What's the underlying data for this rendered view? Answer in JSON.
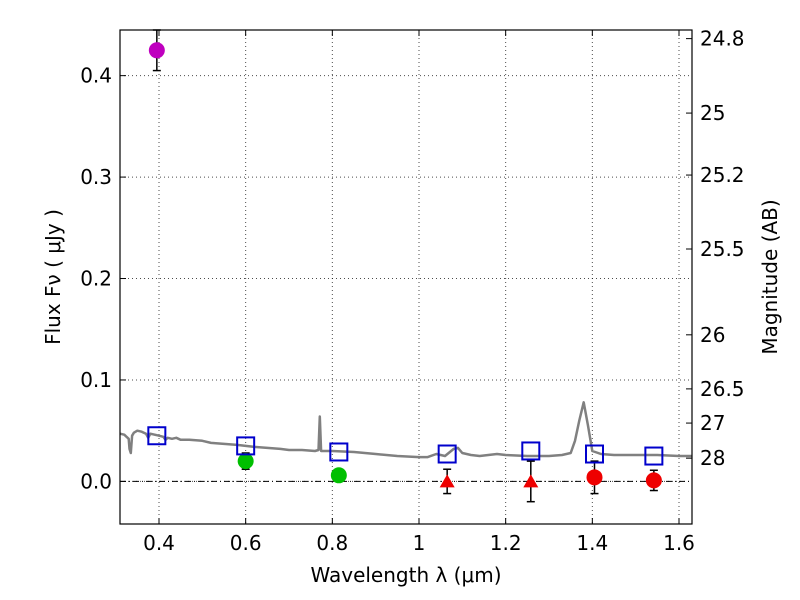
{
  "chart_data": {
    "type": "scatter",
    "xlabel": "Wavelength  λ (μm)",
    "ylabel": "Flux  Fν  ( μJy )",
    "ylabel_right": "Magnitude (AB)",
    "xlim": [
      0.31,
      1.63
    ],
    "ylim": [
      -0.042,
      0.445
    ],
    "grid": true,
    "x_ticks": [
      0.4,
      0.6,
      0.8,
      1.0,
      1.2,
      1.4,
      1.6
    ],
    "x_tick_labels": [
      "0.4",
      "0.6",
      "0.8",
      "1",
      "1.2",
      "1.4",
      "1.6"
    ],
    "y_ticks": [
      0.0,
      0.1,
      0.2,
      0.3,
      0.4
    ],
    "y_tick_labels": [
      "0.0",
      "0.1",
      "0.2",
      "0.3",
      "0.4"
    ],
    "right_ticks": [
      {
        "label": "24.8",
        "flux": 0.4365
      },
      {
        "label": "25",
        "flux": 0.3631
      },
      {
        "label": "25.2",
        "flux": 0.302
      },
      {
        "label": "25.5",
        "flux": 0.2291
      },
      {
        "label": "26",
        "flux": 0.1445
      },
      {
        "label": "26.5",
        "flux": 0.0912
      },
      {
        "label": "27",
        "flux": 0.0575
      },
      {
        "label": "28",
        "flux": 0.0229
      }
    ],
    "colors": {
      "model_line": "#808080",
      "model_box": "#0000cc",
      "purple": "#bf00bf",
      "green": "#00bf00",
      "red": "#ee0000",
      "errorbar": "#000000",
      "zero_line": "#000000",
      "grid": "#000000"
    },
    "sed_model": {
      "name": "SED model",
      "x": [
        0.31,
        0.32,
        0.33,
        0.332,
        0.335,
        0.338,
        0.342,
        0.35,
        0.36,
        0.37,
        0.375,
        0.38,
        0.39,
        0.4,
        0.41,
        0.415,
        0.42,
        0.43,
        0.44,
        0.45,
        0.47,
        0.5,
        0.52,
        0.55,
        0.58,
        0.6,
        0.62,
        0.65,
        0.68,
        0.7,
        0.73,
        0.76,
        0.768,
        0.771,
        0.774,
        0.78,
        0.8,
        0.85,
        0.9,
        0.95,
        1.0,
        1.02,
        1.04,
        1.06,
        1.08,
        1.09,
        1.1,
        1.12,
        1.14,
        1.16,
        1.18,
        1.2,
        1.25,
        1.3,
        1.33,
        1.35,
        1.36,
        1.37,
        1.38,
        1.39,
        1.4,
        1.42,
        1.45,
        1.5,
        1.55,
        1.6,
        1.63
      ],
      "y": [
        0.047,
        0.046,
        0.042,
        0.032,
        0.028,
        0.045,
        0.048,
        0.05,
        0.049,
        0.047,
        0.043,
        0.047,
        0.046,
        0.045,
        0.044,
        0.041,
        0.043,
        0.042,
        0.043,
        0.041,
        0.041,
        0.04,
        0.038,
        0.037,
        0.036,
        0.035,
        0.034,
        0.033,
        0.032,
        0.031,
        0.031,
        0.03,
        0.031,
        0.064,
        0.03,
        0.03,
        0.03,
        0.029,
        0.027,
        0.025,
        0.024,
        0.024,
        0.027,
        0.025,
        0.032,
        0.033,
        0.028,
        0.026,
        0.025,
        0.026,
        0.027,
        0.026,
        0.025,
        0.025,
        0.026,
        0.028,
        0.04,
        0.06,
        0.078,
        0.055,
        0.03,
        0.027,
        0.026,
        0.026,
        0.026,
        0.025,
        0.025
      ]
    },
    "model_photometry": {
      "name": "Model band fluxes",
      "x": [
        0.395,
        0.6,
        0.815,
        1.065,
        1.258,
        1.405,
        1.542
      ],
      "y": [
        0.045,
        0.035,
        0.029,
        0.027,
        0.03,
        0.027,
        0.025
      ]
    },
    "observations": [
      {
        "x": 0.395,
        "y": 0.425,
        "err": 0.02,
        "color": "purple",
        "marker": "circle"
      },
      {
        "x": 0.6,
        "y": 0.02,
        "err": 0.008,
        "color": "green",
        "marker": "circle"
      },
      {
        "x": 0.815,
        "y": 0.006,
        "err": 0.006,
        "color": "green",
        "marker": "circle"
      },
      {
        "x": 1.065,
        "y": 0.0,
        "err": 0.012,
        "color": "red",
        "marker": "triangle"
      },
      {
        "x": 1.258,
        "y": 0.0,
        "err": 0.02,
        "color": "red",
        "marker": "triangle"
      },
      {
        "x": 1.405,
        "y": 0.004,
        "err": 0.016,
        "color": "red",
        "marker": "circle"
      },
      {
        "x": 1.542,
        "y": 0.001,
        "err": 0.01,
        "color": "red",
        "marker": "circle"
      }
    ]
  }
}
